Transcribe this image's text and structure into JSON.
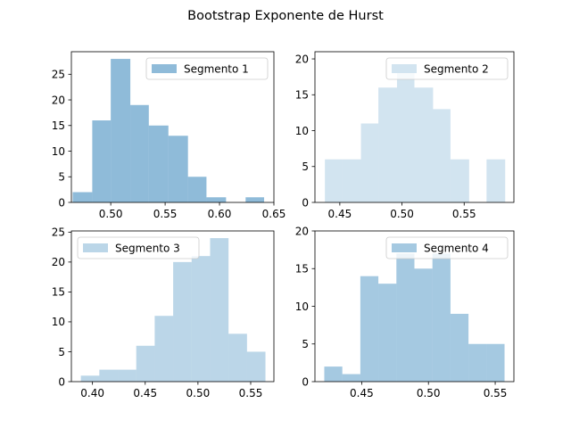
{
  "figure": {
    "title": "Bootstrap Exponente de Hurst"
  },
  "chart_data": [
    {
      "type": "histogram",
      "legend": "Segmento 1",
      "legend_position": "top-right",
      "color": "#1f77b4",
      "alpha": 0.5,
      "bins": [
        0.465,
        0.483,
        0.5,
        0.518,
        0.535,
        0.553,
        0.571,
        0.588,
        0.606,
        0.624,
        0.641
      ],
      "counts": [
        2,
        16,
        28,
        19,
        15,
        13,
        5,
        1,
        0,
        1
      ],
      "xlim": [
        0.4638,
        0.65
      ],
      "ylim": [
        0,
        29.4
      ],
      "xticks": [
        0.5,
        0.55,
        0.6,
        0.65
      ],
      "xtick_labels": [
        "0.50",
        "0.55",
        "0.60",
        "0.65"
      ],
      "yticks": [
        0,
        5,
        10,
        15,
        20,
        25
      ],
      "ytick_labels": [
        "0",
        "5",
        "10",
        "15",
        "20",
        "25"
      ]
    },
    {
      "type": "histogram",
      "legend": "Segmento 2",
      "legend_position": "top-right",
      "color": "#1f77b4",
      "alpha": 0.2,
      "bins": [
        0.438,
        0.452,
        0.467,
        0.481,
        0.496,
        0.51,
        0.525,
        0.539,
        0.554,
        0.568,
        0.583
      ],
      "counts": [
        6,
        6,
        11,
        16,
        18,
        16,
        13,
        6,
        0,
        6
      ],
      "xlim": [
        0.43,
        0.59
      ],
      "ylim": [
        0,
        21
      ],
      "xticks": [
        0.45,
        0.5,
        0.55
      ],
      "xtick_labels": [
        "0.45",
        "0.50",
        "0.55"
      ],
      "yticks": [
        0,
        5,
        10,
        15,
        20
      ],
      "ytick_labels": [
        "0",
        "5",
        "10",
        "15",
        "20"
      ]
    },
    {
      "type": "histogram",
      "legend": "Segmento 3",
      "legend_position": "top-left",
      "color": "#1f77b4",
      "alpha": 0.3,
      "bins": [
        0.389,
        0.4065,
        0.424,
        0.4415,
        0.459,
        0.4765,
        0.494,
        0.5115,
        0.529,
        0.5465,
        0.564
      ],
      "counts": [
        1,
        2,
        2,
        6,
        11,
        20,
        21,
        24,
        8,
        5
      ],
      "xlim": [
        0.38,
        0.572
      ],
      "ylim": [
        0,
        25.2
      ],
      "xticks": [
        0.4,
        0.45,
        0.5,
        0.55
      ],
      "xtick_labels": [
        "0.40",
        "0.45",
        "0.50",
        "0.55"
      ],
      "yticks": [
        0,
        5,
        10,
        15,
        20,
        25
      ],
      "ytick_labels": [
        "0",
        "5",
        "10",
        "15",
        "20",
        "25"
      ]
    },
    {
      "type": "histogram",
      "legend": "Segmento 4",
      "legend_position": "top-right",
      "color": "#1f77b4",
      "alpha": 0.4,
      "bins": [
        0.422,
        0.4355,
        0.449,
        0.4625,
        0.476,
        0.4895,
        0.503,
        0.5165,
        0.53,
        0.5435,
        0.557
      ],
      "counts": [
        2,
        1,
        14,
        13,
        17,
        15,
        17,
        9,
        5,
        5
      ],
      "xlim": [
        0.415,
        0.564
      ],
      "ylim": [
        0,
        20
      ],
      "xticks": [
        0.45,
        0.5,
        0.55
      ],
      "xtick_labels": [
        "0.45",
        "0.50",
        "0.55"
      ],
      "yticks": [
        0,
        5,
        10,
        15,
        20
      ],
      "ytick_labels": [
        "0",
        "5",
        "10",
        "15",
        "20"
      ]
    }
  ]
}
